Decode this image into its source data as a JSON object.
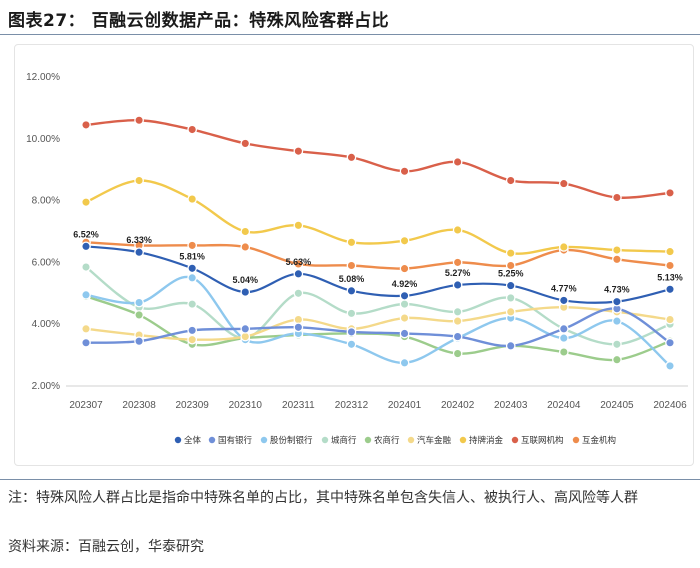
{
  "header": {
    "title": "图表27：  百融云创数据产品：特殊风险客群占比"
  },
  "footer": {
    "note": "注：特殊风险人群占比是指命中特殊名单的占比，其中特殊名单包含失信人、被执行人、高风险等人群",
    "source": "资料来源：百融云创，华泰研究"
  },
  "chart_data": {
    "type": "line",
    "title": "",
    "xlabel": "",
    "ylabel": "",
    "x": [
      "202307",
      "202308",
      "202309",
      "202310",
      "202311",
      "202312",
      "202401",
      "202402",
      "202403",
      "202404",
      "202405",
      "202406"
    ],
    "ylim": [
      2.0,
      12.0
    ],
    "yticks": [
      "2.00%",
      "4.00%",
      "6.00%",
      "8.00%",
      "10.00%",
      "12.00%"
    ],
    "ytick_values": [
      2,
      4,
      6,
      8,
      10,
      12
    ],
    "grid": false,
    "legend_position": "bottom",
    "series": [
      {
        "name": "全体",
        "color": "#2f5fb3",
        "values": [
          6.52,
          6.33,
          5.81,
          5.04,
          5.63,
          5.08,
          4.92,
          5.27,
          5.25,
          4.77,
          4.73,
          5.13
        ],
        "labels": [
          "6.52%",
          "6.33%",
          "5.81%",
          "5.04%",
          "5.63%",
          "5.08%",
          "4.92%",
          "5.27%",
          "5.25%",
          "4.77%",
          "4.73%",
          "5.13%"
        ]
      },
      {
        "name": "国有银行",
        "color": "#6f8fd8",
        "values": [
          3.4,
          3.45,
          3.8,
          3.85,
          3.9,
          3.75,
          3.7,
          3.6,
          3.3,
          3.85,
          4.5,
          3.4
        ]
      },
      {
        "name": "股份制银行",
        "color": "#8ec8ee",
        "values": [
          4.95,
          4.7,
          5.5,
          3.5,
          3.7,
          3.35,
          2.75,
          3.55,
          4.2,
          3.55,
          4.1,
          2.65
        ]
      },
      {
        "name": "城商行",
        "color": "#b4dcc8",
        "values": [
          5.85,
          4.55,
          4.65,
          3.55,
          5.0,
          4.35,
          4.65,
          4.4,
          4.85,
          3.85,
          3.35,
          4.0
        ]
      },
      {
        "name": "农商行",
        "color": "#9ccc8c",
        "values": [
          4.9,
          4.3,
          3.35,
          3.55,
          3.65,
          3.7,
          3.6,
          3.05,
          3.3,
          3.1,
          2.85,
          3.45
        ]
      },
      {
        "name": "汽车金融",
        "color": "#f4d98a",
        "values": [
          3.85,
          3.65,
          3.5,
          3.6,
          4.15,
          3.85,
          4.2,
          4.1,
          4.4,
          4.55,
          4.4,
          4.15
        ]
      },
      {
        "name": "持牌消金",
        "color": "#f2c94c",
        "values": [
          7.95,
          8.65,
          8.05,
          7.0,
          7.2,
          6.65,
          6.7,
          7.05,
          6.3,
          6.5,
          6.4,
          6.35
        ]
      },
      {
        "name": "互联网机构",
        "color": "#d9604a",
        "values": [
          10.45,
          10.6,
          10.3,
          9.85,
          9.6,
          9.4,
          8.95,
          9.25,
          8.65,
          8.55,
          8.1,
          8.25
        ]
      },
      {
        "name": "互金机构",
        "color": "#ee8c4c",
        "values": [
          6.65,
          6.55,
          6.55,
          6.5,
          5.95,
          5.9,
          5.8,
          6.0,
          5.9,
          6.4,
          6.1,
          5.9
        ]
      }
    ]
  }
}
